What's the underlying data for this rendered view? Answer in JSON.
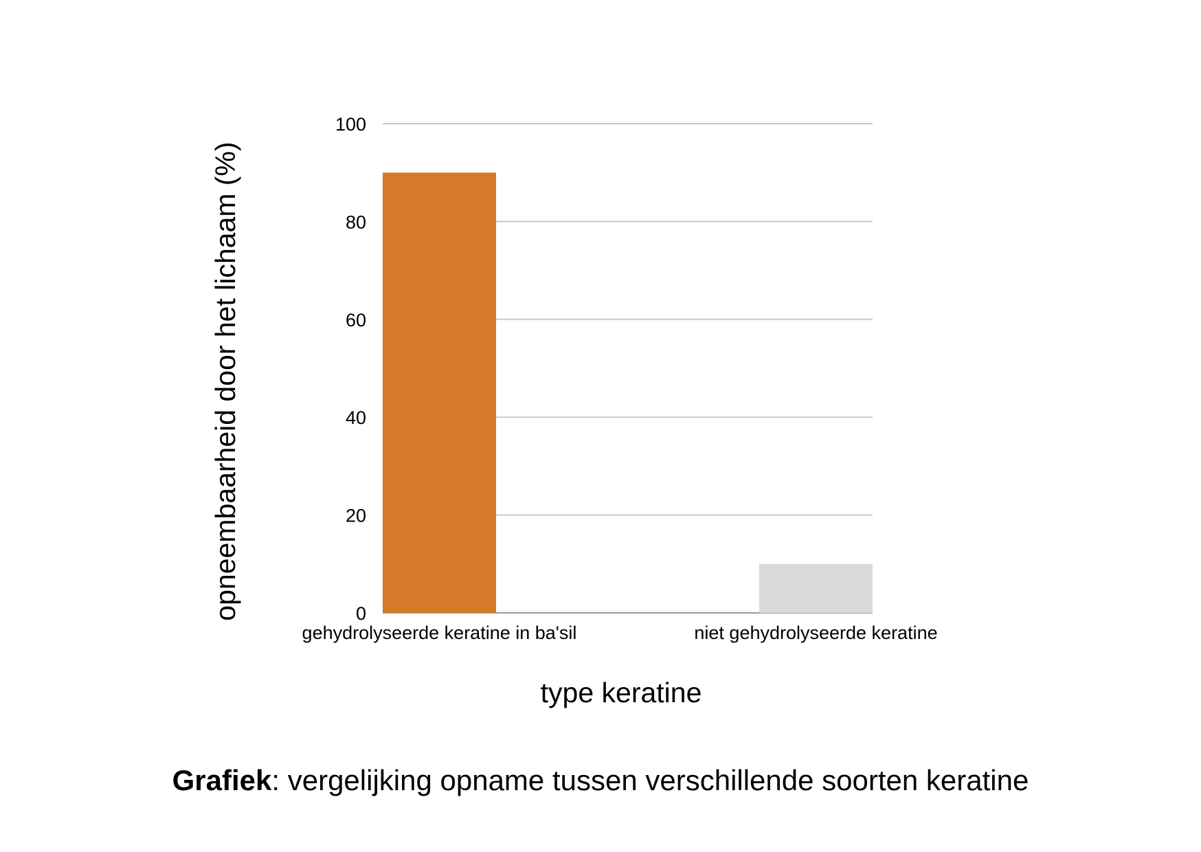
{
  "chart_data": {
    "type": "bar",
    "categories": [
      "gehydrolyseerde keratine in ba'sil",
      "niet gehydrolyseerde keratine"
    ],
    "values": [
      90,
      10
    ],
    "bar_colors": [
      "#d47a28",
      "#d9d9d9"
    ],
    "grid_color": "#c8c8c8",
    "xlabel": "type keratine",
    "ylabel": "opneembaarheid door het lichaam (%)",
    "ylim": [
      0,
      100
    ],
    "yticks": [
      0,
      20,
      40,
      60,
      80,
      100
    ],
    "grid": true
  },
  "caption": {
    "bold": "Grafiek",
    "text": ": vergelijking opname tussen verschillende soorten keratine"
  }
}
